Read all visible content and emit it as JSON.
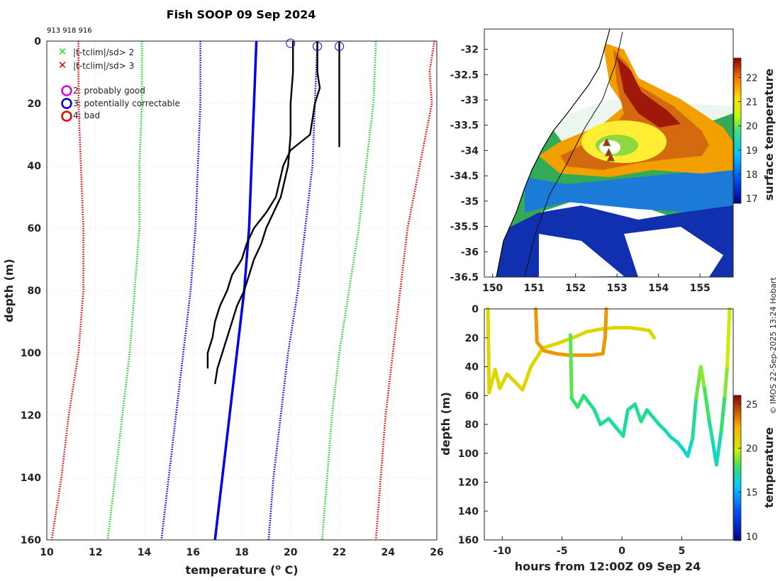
{
  "figure": {
    "title": "Fish SOOP 09 Sep 2024",
    "drop_ids": "913 918 916",
    "credit": "© IMOS 22-Sep-2025 13:24 Hobart"
  },
  "legend": {
    "items": [
      {
        "marker": "x",
        "color": "#22dd22",
        "label": "|t-tclim|/sd> 2"
      },
      {
        "marker": "x",
        "color": "#dd0000",
        "label": "|t-tclim|/sd> 3"
      },
      {
        "marker": "o",
        "color": "#dd00dd",
        "label": "2: probably good"
      },
      {
        "marker": "o",
        "color": "#0000dd",
        "label": "3: potentially correctable"
      },
      {
        "marker": "o",
        "color": "#ee0000",
        "label": "4: bad"
      }
    ]
  },
  "chart_data": [
    {
      "id": "profile",
      "type": "line",
      "title": "Fish SOOP 09 Sep 2024",
      "xlabel": "temperature (",
      "xlabel_unit_sup": "o",
      "xlabel_unit_tail": " C)",
      "ylabel": "depth (m)",
      "xlim": [
        10,
        26
      ],
      "ylim": [
        0,
        160
      ],
      "y_reversed": true,
      "grid": true,
      "xticks": [
        10,
        12,
        14,
        16,
        18,
        20,
        22,
        24,
        26
      ],
      "yticks": [
        0,
        20,
        40,
        60,
        80,
        100,
        120,
        140,
        160
      ],
      "series": [
        {
          "name": "climatology -3sd",
          "color": "#dd0000",
          "style": "dotted",
          "depth": [
            0,
            20,
            40,
            60,
            80,
            90,
            100,
            120,
            140,
            160
          ],
          "temp": [
            11.3,
            11.3,
            11.4,
            11.5,
            11.5,
            11.4,
            11.3,
            10.9,
            10.6,
            10.2
          ]
        },
        {
          "name": "climatology -2sd",
          "color": "#22cc22",
          "style": "dotted",
          "depth": [
            0,
            20,
            40,
            60,
            80,
            100,
            120,
            140,
            160
          ],
          "temp": [
            13.9,
            13.9,
            13.8,
            13.8,
            13.6,
            13.4,
            13.1,
            12.8,
            12.5
          ]
        },
        {
          "name": "climatology -1sd",
          "color": "#0000dd",
          "style": "dotted",
          "depth": [
            0,
            20,
            40,
            60,
            80,
            100,
            120,
            140,
            160
          ],
          "temp": [
            16.3,
            16.3,
            16.2,
            16.1,
            15.9,
            15.6,
            15.3,
            15.0,
            14.7
          ]
        },
        {
          "name": "climatology mean",
          "color": "#0000ee",
          "style": "solid",
          "depth": [
            0,
            20,
            40,
            60,
            80,
            100,
            120,
            140,
            160
          ],
          "temp": [
            18.6,
            18.5,
            18.4,
            18.3,
            18.1,
            17.8,
            17.5,
            17.2,
            16.9
          ]
        },
        {
          "name": "climatology +1sd",
          "color": "#0000dd",
          "style": "dotted",
          "depth": [
            0,
            20,
            40,
            60,
            80,
            100,
            120,
            140,
            160
          ],
          "temp": [
            21.1,
            21.0,
            20.9,
            20.6,
            20.3,
            19.9,
            19.6,
            19.3,
            19.1
          ]
        },
        {
          "name": "climatology +2sd",
          "color": "#22cc22",
          "style": "dotted",
          "depth": [
            0,
            20,
            40,
            60,
            80,
            100,
            120,
            140,
            160
          ],
          "temp": [
            23.5,
            23.4,
            23.1,
            22.8,
            22.4,
            22.0,
            21.7,
            21.5,
            21.3
          ]
        },
        {
          "name": "climatology +3sd",
          "color": "#dd0000",
          "style": "dotted",
          "depth": [
            0,
            10,
            20,
            40,
            60,
            80,
            100,
            120,
            140,
            160
          ],
          "temp": [
            25.9,
            25.7,
            25.8,
            25.3,
            24.8,
            24.5,
            24.2,
            23.9,
            23.7,
            23.5
          ]
        },
        {
          "name": "XBT drop 913",
          "color": "#000000",
          "style": "solid",
          "depth": [
            0,
            10,
            20,
            30,
            40,
            50,
            55,
            60,
            65,
            70,
            75,
            80,
            85,
            90,
            95,
            100,
            105,
            110
          ],
          "temp": [
            20.1,
            20.1,
            20.0,
            20.0,
            19.9,
            19.6,
            19.3,
            19.0,
            18.8,
            18.5,
            18.3,
            18.1,
            17.8,
            17.6,
            17.4,
            17.2,
            17.0,
            16.9
          ]
        },
        {
          "name": "XBT drop 918",
          "color": "#000000",
          "style": "solid",
          "depth": [
            0,
            10,
            15,
            20,
            30,
            35,
            40,
            50,
            55,
            60,
            65,
            70,
            75,
            80,
            85,
            90,
            95,
            100,
            105
          ],
          "temp": [
            21.1,
            21.1,
            21.2,
            21.0,
            20.8,
            20.0,
            19.7,
            19.4,
            19.0,
            18.5,
            18.2,
            18.0,
            17.6,
            17.4,
            17.1,
            16.9,
            16.8,
            16.6,
            16.6
          ]
        },
        {
          "name": "XBT drop 916",
          "color": "#000000",
          "style": "solid",
          "depth": [
            0,
            10,
            20,
            30,
            34
          ],
          "temp": [
            22.0,
            22.0,
            22.0,
            22.0,
            22.0
          ]
        }
      ],
      "flag_markers": [
        {
          "temp": 20.0,
          "depth": 0,
          "flag": "3: potentially correctable"
        },
        {
          "temp": 21.1,
          "depth": 1,
          "flag": "3: potentially correctable"
        },
        {
          "temp": 22.0,
          "depth": 1,
          "flag": "3: potentially correctable"
        }
      ]
    },
    {
      "id": "map",
      "type": "heatmap",
      "colorbar_label": "surface temperature",
      "xlim": [
        149.8,
        155.8
      ],
      "ylim": [
        -36.5,
        -31.6
      ],
      "xticks": [
        150,
        151,
        152,
        153,
        154,
        155
      ],
      "yticks": [
        -32,
        -32.5,
        -33,
        -33.5,
        -34,
        -34.5,
        -35,
        -35.5,
        -36,
        -36.5
      ],
      "colorbar_range": [
        16.8,
        22.8
      ],
      "colorbar_ticks": [
        17,
        18,
        19,
        20,
        21,
        22
      ],
      "drop_locations": [
        {
          "lon": 152.75,
          "lat": -33.85
        },
        {
          "lon": 152.8,
          "lat": -34.05
        },
        {
          "lon": 152.85,
          "lat": -34.15
        }
      ]
    },
    {
      "id": "section",
      "type": "scatter",
      "xlabel": "hours from 12:00Z 09 Sep 24",
      "ylabel": "depth (m)",
      "xlim": [
        -11.5,
        9.3
      ],
      "ylim": [
        0,
        160
      ],
      "y_reversed": true,
      "xticks": [
        -10,
        -5,
        0,
        5
      ],
      "yticks": [
        0,
        20,
        40,
        60,
        80,
        100,
        120,
        140,
        160
      ],
      "colorbar_label": "temperature",
      "colorbar_range": [
        9.5,
        26
      ],
      "colorbar_ticks": [
        10,
        15,
        20,
        25
      ],
      "tracks": [
        {
          "hours": [
            -11.2,
            -11.1,
            -10.6,
            -10.2,
            -9.6,
            -9.0,
            -8.3,
            -7.6,
            -6.6,
            -5.4,
            -4.1,
            -3.0,
            -1.8,
            -0.6,
            0.6,
            1.6,
            2.3,
            2.7
          ],
          "depth": [
            0,
            58,
            42,
            55,
            45,
            50,
            56,
            40,
            27,
            24,
            20,
            16,
            14,
            13,
            13,
            14,
            15,
            20
          ],
          "temp": [
            21,
            21,
            21,
            21,
            21,
            21,
            21,
            21,
            21,
            21,
            21,
            21,
            21,
            21,
            21,
            21,
            21,
            21
          ]
        },
        {
          "hours": [
            -7.2,
            -7.1,
            -6.5,
            -5.5,
            -4.5,
            -3.5,
            -2.5,
            -1.6,
            -1.4,
            -1.3
          ],
          "depth": [
            0,
            23,
            29,
            31,
            32,
            32,
            32,
            31,
            20,
            0
          ],
          "temp": [
            23,
            23,
            23,
            23,
            23,
            23,
            23,
            23,
            23,
            23
          ]
        },
        {
          "hours": [
            -4.3,
            -4.2,
            -3.7,
            -3.2,
            -2.3,
            -1.8,
            -1.1,
            -0.5,
            0.1,
            0.5,
            1.1,
            1.6,
            2.1,
            2.6,
            3.1,
            3.6,
            4.1,
            4.6,
            5.1,
            5.5,
            5.9,
            6.2,
            6.6,
            6.9,
            7.3,
            7.6,
            7.9,
            8.3,
            8.6,
            8.8,
            9.0
          ],
          "depth": [
            18,
            62,
            68,
            60,
            70,
            80,
            76,
            82,
            88,
            70,
            66,
            78,
            70,
            75,
            80,
            84,
            89,
            92,
            97,
            102,
            90,
            62,
            40,
            55,
            78,
            92,
            108,
            85,
            60,
            40,
            0
          ],
          "temp": [
            19,
            17.5,
            17.5,
            17.5,
            17,
            16.8,
            16.8,
            16.8,
            16.7,
            16.9,
            17.1,
            17.0,
            17.0,
            16.8,
            16.7,
            16.6,
            16.5,
            16.4,
            16.2,
            16.0,
            16.4,
            17.5,
            19.5,
            18.5,
            17.2,
            16.5,
            16.1,
            16.8,
            18.2,
            19.5,
            21
          ]
        }
      ]
    }
  ]
}
